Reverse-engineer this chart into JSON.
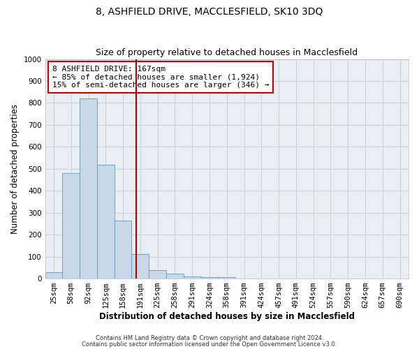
{
  "title": "8, ASHFIELD DRIVE, MACCLESFIELD, SK10 3DQ",
  "subtitle": "Size of property relative to detached houses in Macclesfield",
  "xlabel": "Distribution of detached houses by size in Macclesfield",
  "ylabel": "Number of detached properties",
  "categories": [
    "25sqm",
    "58sqm",
    "92sqm",
    "125sqm",
    "158sqm",
    "191sqm",
    "225sqm",
    "258sqm",
    "291sqm",
    "324sqm",
    "358sqm",
    "391sqm",
    "424sqm",
    "457sqm",
    "491sqm",
    "524sqm",
    "557sqm",
    "590sqm",
    "624sqm",
    "657sqm",
    "690sqm"
  ],
  "values": [
    30,
    480,
    820,
    520,
    265,
    110,
    38,
    22,
    10,
    8,
    8,
    0,
    0,
    0,
    0,
    0,
    0,
    0,
    0,
    0,
    0
  ],
  "bar_color": "#c8d8e8",
  "bar_edge_color": "#6699bb",
  "redline_color": "#aa0000",
  "ylim": [
    0,
    1000
  ],
  "yticks": [
    0,
    100,
    200,
    300,
    400,
    500,
    600,
    700,
    800,
    900,
    1000
  ],
  "annotation_text": "8 ASHFIELD DRIVE: 167sqm\n← 85% of detached houses are smaller (1,924)\n15% of semi-detached houses are larger (346) →",
  "annotation_box_facecolor": "#ffffff",
  "annotation_box_edgecolor": "#cc0000",
  "footnote1": "Contains HM Land Registry data © Crown copyright and database right 2024.",
  "footnote2": "Contains public sector information licensed under the Open Government Licence v3.0.",
  "background_color": "#e8eef4",
  "grid_color": "#c8d0da",
  "title_fontsize": 10,
  "subtitle_fontsize": 9,
  "tick_fontsize": 7.5,
  "label_fontsize": 8.5,
  "annotation_fontsize": 8,
  "footnote_fontsize": 6
}
